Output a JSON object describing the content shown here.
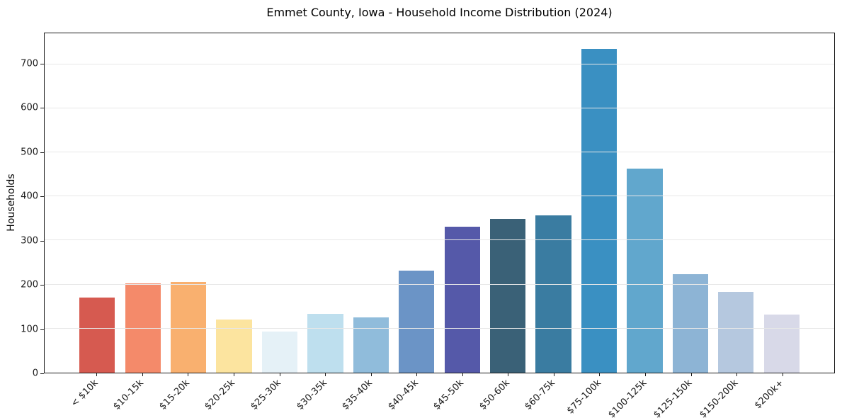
{
  "chart_data": {
    "type": "bar",
    "title": "Emmet County, Iowa - Household Income Distribution (2024)",
    "xlabel": "",
    "ylabel": "Households",
    "ylim": [
      0,
      770
    ],
    "yticks": [
      0,
      100,
      200,
      300,
      400,
      500,
      600,
      700
    ],
    "grid": true,
    "legend_position": "none",
    "categories": [
      "< $10k",
      "$10-15k",
      "$15-20k",
      "$20-25k",
      "$25-30k",
      "$30-35k",
      "$35-40k",
      "$40-45k",
      "$45-50k",
      "$50-60k",
      "$60-75k",
      "$75-100k",
      "$100-125k",
      "$125-150k",
      "$150-200k",
      "$200k+"
    ],
    "values": [
      170,
      202,
      206,
      120,
      94,
      133,
      125,
      232,
      331,
      349,
      357,
      735,
      463,
      224,
      184,
      132
    ],
    "bar_colors": [
      "#d65a50",
      "#f48a6a",
      "#f9b06f",
      "#fce49f",
      "#e5f1f7",
      "#bedfee",
      "#90bcdb",
      "#6b94c6",
      "#5559a9",
      "#3a6177",
      "#3a7ca1",
      "#3a90c2",
      "#61a7cd",
      "#8db4d5",
      "#b5c8df",
      "#d8d9e8"
    ],
    "colors": {
      "grid": "#e7e7e7",
      "spine": "#1a1a1a",
      "tick_label": "#1a1a1a",
      "background": "#ffffff"
    }
  }
}
